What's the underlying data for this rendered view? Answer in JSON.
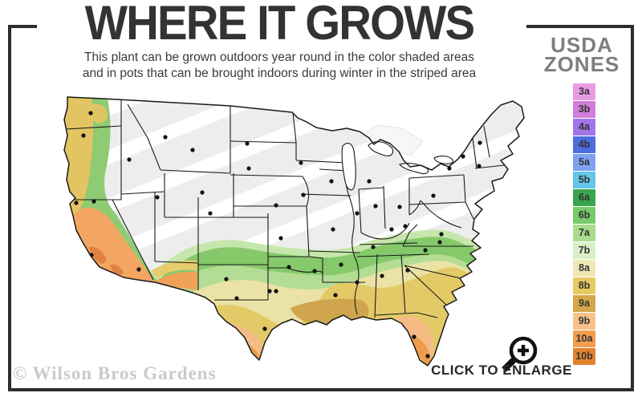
{
  "header": {
    "title": "WHERE IT GROWS",
    "subtitle_line1": "This plant can be grown outdoors year round in the color shaded areas",
    "subtitle_line2": "and in pots that can be brought indoors during winter in the striped area"
  },
  "legend": {
    "title_line1": "USDA",
    "title_line2": "ZONES",
    "zones": [
      {
        "label": "3a",
        "color": "#e79be4"
      },
      {
        "label": "3b",
        "color": "#d17fd8"
      },
      {
        "label": "4a",
        "color": "#a276ea"
      },
      {
        "label": "4b",
        "color": "#4d6ede"
      },
      {
        "label": "5a",
        "color": "#7da2f2"
      },
      {
        "label": "5b",
        "color": "#64c7e9"
      },
      {
        "label": "6a",
        "color": "#3aa54b"
      },
      {
        "label": "6b",
        "color": "#77cb69"
      },
      {
        "label": "7a",
        "color": "#a9dc8d"
      },
      {
        "label": "7b",
        "color": "#d9efc5"
      },
      {
        "label": "8a",
        "color": "#efe7b4"
      },
      {
        "label": "8b",
        "color": "#e7ca62"
      },
      {
        "label": "9a",
        "color": "#d3a74a"
      },
      {
        "label": "9b",
        "color": "#f6c289"
      },
      {
        "label": "10a",
        "color": "#f09d4f"
      },
      {
        "label": "10b",
        "color": "#e2822f"
      }
    ]
  },
  "map_colors": {
    "unshaded_base": "#ededed",
    "stripe": "#ffffff",
    "outline": "#1a1a1a"
  },
  "footer": {
    "watermark": "© Wilson Bros Gardens",
    "enlarge_label": "CLICK TO ENLARGE"
  }
}
